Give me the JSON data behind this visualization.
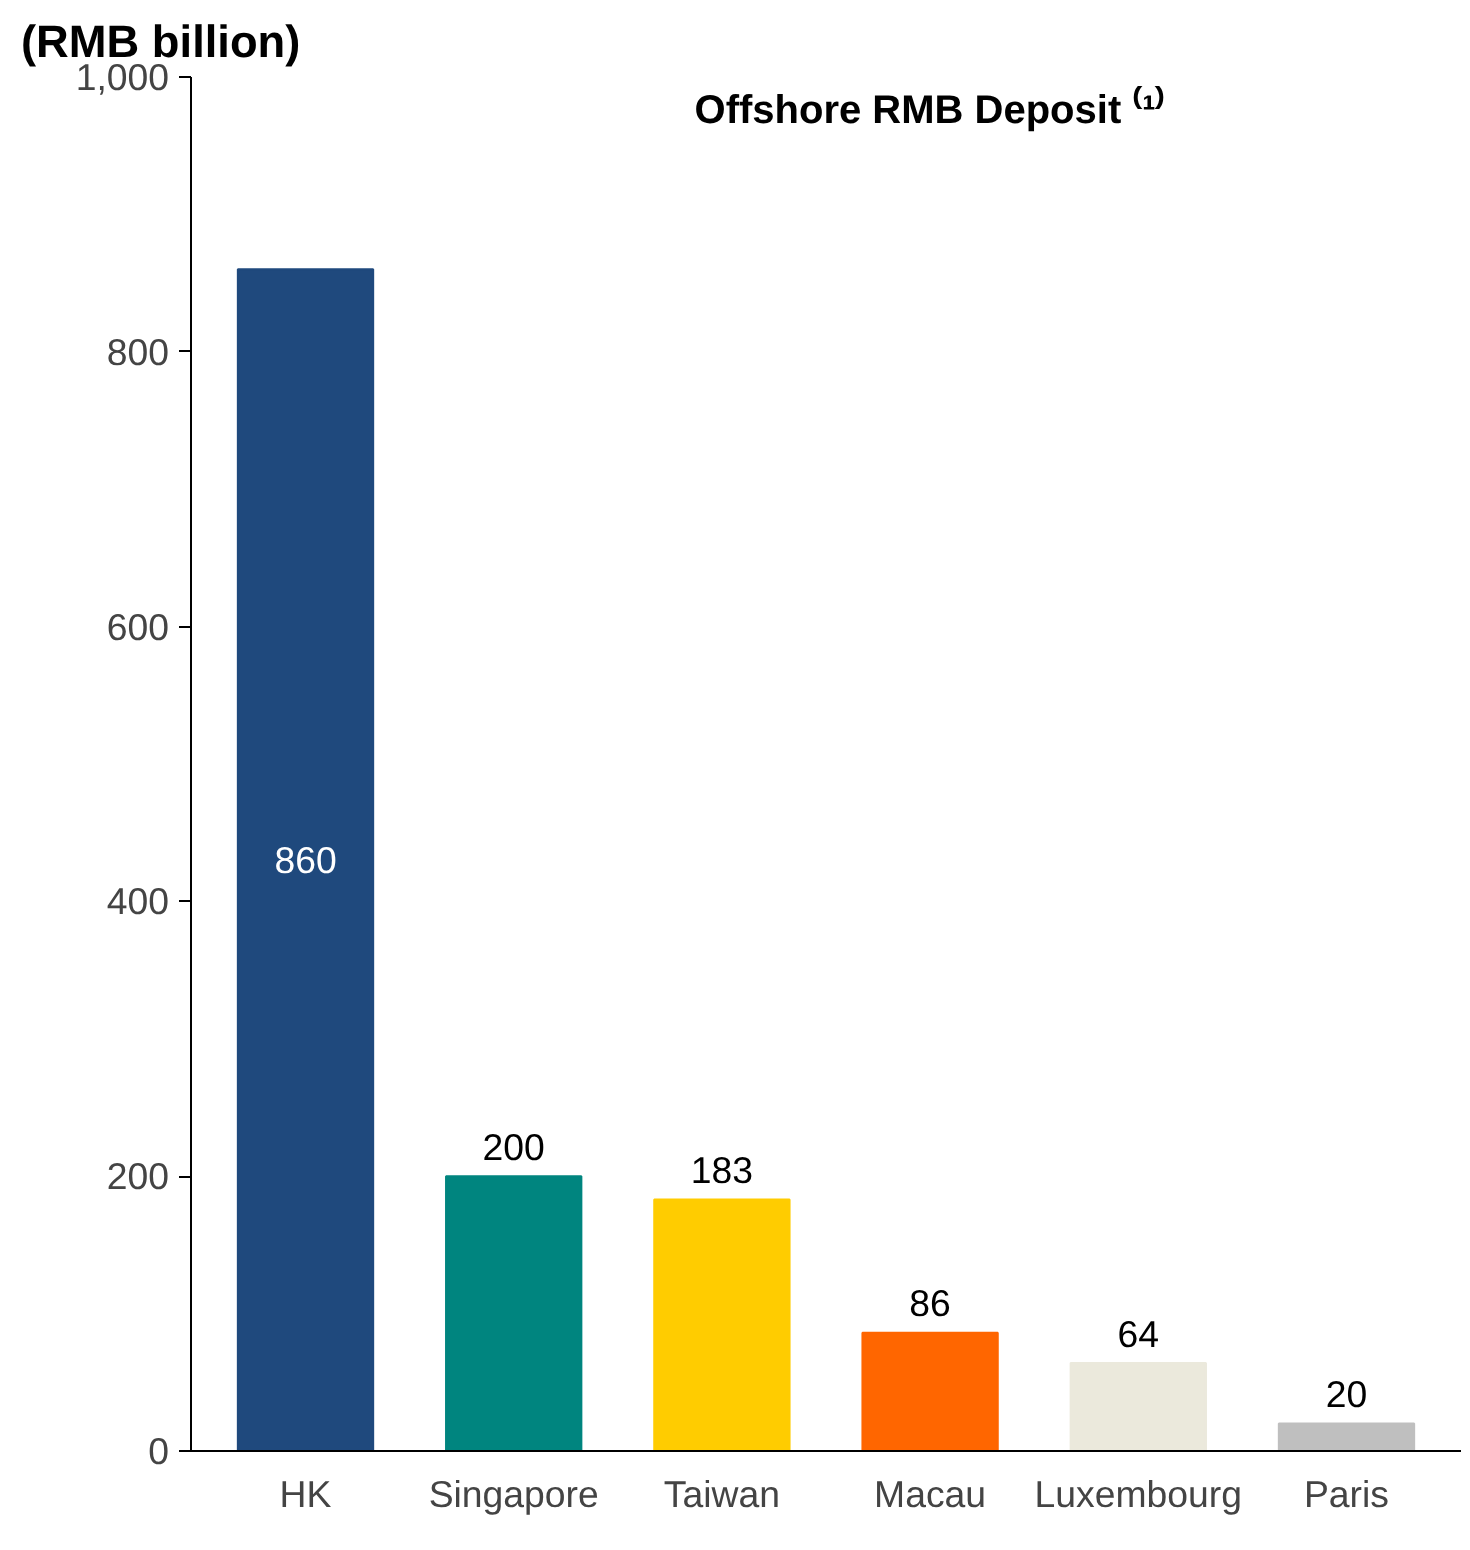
{
  "chart_data": {
    "type": "bar",
    "title": "Offshore RMB Deposit ⁽¹⁾",
    "ylabel": "(RMB billion)",
    "categories": [
      "HK",
      "Singapore",
      "Taiwan",
      "Macau",
      "Luxembourg",
      "Paris"
    ],
    "values": [
      860,
      200,
      183,
      86,
      64,
      20
    ],
    "colors": [
      "#1f497d",
      "#00857f",
      "#ffcc00",
      "#ff6600",
      "#ebe9dc",
      "#bfbfbf"
    ],
    "ylim": [
      0,
      1000
    ],
    "yticks": [
      0,
      200,
      400,
      600,
      800,
      {
        "value": 1000,
        "label": "1,000"
      }
    ],
    "grid": false,
    "data_labels": true
  }
}
